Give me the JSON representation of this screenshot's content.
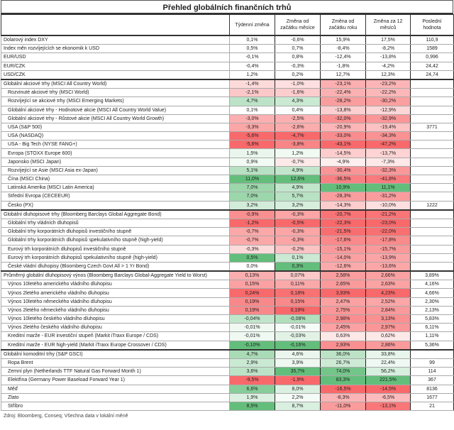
{
  "title": "Přehled globálních finančních trhů",
  "columns": [
    "",
    "Týdenní změna",
    "Změna od začátku měsíce",
    "Změna od začátku roku",
    "Změna za 12 měsíců",
    "Poslední hodnota"
  ],
  "color_scale": {
    "negative": "#f8696b",
    "positive": "#63be7b",
    "neutral": "#ffffff"
  },
  "groups": [
    {
      "heatmap": false,
      "inverted": false,
      "rows": [
        {
          "label": "Dolarový index DXY",
          "indent": false,
          "values": [
            "0,1%",
            "-0,6%",
            "15,9%",
            "17,5%",
            "110,9"
          ]
        },
        {
          "label": "Index měn rozvíjejících se ekonomik k USD",
          "indent": false,
          "values": [
            "0,5%",
            "0,7%",
            "-8,4%",
            "-8,2%",
            "1589"
          ]
        },
        {
          "label": "EUR/USD",
          "indent": false,
          "values": [
            "-0,1%",
            "0,8%",
            "-12,4%",
            "-13,8%",
            "0,996"
          ]
        },
        {
          "label": "EUR/CZK",
          "indent": false,
          "values": [
            "-0,4%",
            "-0,3%",
            "-1,8%",
            "-4,2%",
            "24,42"
          ]
        },
        {
          "label": "USD/CZK",
          "indent": false,
          "values": [
            "1,2%",
            "0,2%",
            "12,7%",
            "12,3%",
            "24,74"
          ]
        }
      ]
    },
    {
      "heatmap": true,
      "inverted": false,
      "rows": [
        {
          "label": "Globální akciové trhy (MSCI All Country World)",
          "indent": false,
          "values": [
            "-1,4%",
            "-1,0%",
            "-23,1%",
            "-23,2%",
            ""
          ]
        },
        {
          "label": "Rozvinuté akciové trhy (MSCI World)",
          "indent": true,
          "values": [
            "-2,1%",
            "-1,6%",
            "-22,4%",
            "-22,2%",
            ""
          ]
        },
        {
          "label": "Rozvíjející se akciové trhy (MSCI Emerging Markets)",
          "indent": true,
          "values": [
            "4,7%",
            "4,3%",
            "-28,2%",
            "-30,2%",
            ""
          ]
        },
        {
          "label": "Globální akciové trhy - Hodnotové akcie (MSCI All Country World Value)",
          "indent": true,
          "values": [
            "0,1%",
            "0,4%",
            "-13,8%",
            "-12,9%",
            ""
          ]
        },
        {
          "label": "Globální akciové trhy - Růstové akcie (MSCI All Country World Growth)",
          "indent": true,
          "values": [
            "-3,0%",
            "-2,5%",
            "-32,0%",
            "-32,9%",
            ""
          ]
        },
        {
          "label": "USA (S&P 500)",
          "indent": true,
          "values": [
            "-3,3%",
            "-2,6%",
            "-20,9%",
            "-19,4%",
            "3771"
          ]
        },
        {
          "label": "USA (NASDAQ)",
          "indent": true,
          "values": [
            "-5,6%",
            "-4,7%",
            "-33,0%",
            "-34,3%",
            ""
          ]
        },
        {
          "label": "USA - Big Tech (NYSE FANG+)",
          "indent": true,
          "values": [
            "-5,6%",
            "-3,8%",
            "-43,1%",
            "-47,2%",
            ""
          ]
        },
        {
          "label": "Evropa (STOXX Europe 600)",
          "indent": true,
          "values": [
            "1,5%",
            "1,2%",
            "-14,5%",
            "-13,7%",
            ""
          ]
        },
        {
          "label": "Japonsko (MSCI Japan)",
          "indent": true,
          "values": [
            "0,9%",
            "-0,7%",
            "-4,9%",
            "-7,3%",
            ""
          ]
        },
        {
          "label": "Rozvíjející se Asie (MSCI Asia ex-Japan)",
          "indent": true,
          "values": [
            "5,1%",
            "4,9%",
            "-30,4%",
            "-32,3%",
            ""
          ]
        },
        {
          "label": "Čína (MSCI China)",
          "indent": true,
          "values": [
            "11,0%",
            "12,6%",
            "-36,5%",
            "-41,8%",
            ""
          ]
        },
        {
          "label": "Latinská Amerika (MSCI Latin America)",
          "indent": true,
          "values": [
            "7,0%",
            "4,9%",
            "10,9%",
            "11,1%",
            ""
          ]
        },
        {
          "label": "Střední Evropa (CECEEUR)",
          "indent": true,
          "values": [
            "7,0%",
            "5,7%",
            "-28,3%",
            "-31,2%",
            ""
          ]
        },
        {
          "label": "Česko (PX)",
          "indent": true,
          "values": [
            "3,2%",
            "3,2%",
            "-14,3%",
            "-10,0%",
            "1222"
          ]
        }
      ]
    },
    {
      "heatmap": true,
      "inverted": false,
      "rows": [
        {
          "label": "Globální dluhopisové trhy (Bloomberg Barclays Global Aggregate Bond)",
          "indent": false,
          "values": [
            "-0,9%",
            "-0,3%",
            "-20,7%",
            "-21,2%",
            ""
          ]
        },
        {
          "label": "Globální trhy vládních dluhopisů",
          "indent": true,
          "values": [
            "-1,2%",
            "-0,5%",
            "-22,3%",
            "-23,0%",
            ""
          ]
        },
        {
          "label": "Globální trhy korporátních dluhopisů investičního stupně",
          "indent": true,
          "values": [
            "-0,7%",
            "-0,3%",
            "-21,5%",
            "-22,0%",
            ""
          ]
        },
        {
          "label": "Globální trhy korporátních dluhopisů spekulativního stupně (high-yield)",
          "indent": true,
          "values": [
            "-0,7%",
            "-0,3%",
            "-17,6%",
            "-17,8%",
            ""
          ]
        },
        {
          "label": "Eurový trh korporátních dluhopisů investičního stupně",
          "indent": true,
          "values": [
            "-0,3%",
            "-0,2%",
            "-15,1%",
            "-15,7%",
            ""
          ]
        },
        {
          "label": "Eurový trh korporátních dluhopisů spekulativního stupně (high-yield)",
          "indent": true,
          "values": [
            "0,5%",
            "0,1%",
            "-14,0%",
            "-13,9%",
            ""
          ]
        },
        {
          "label": "České vládní dluhopisy (Bloomberg Czech Govt All > 1 Yr Bond)",
          "indent": true,
          "values": [
            "0,0%",
            "0,3%",
            "-12,6%",
            "-13,6%",
            ""
          ]
        }
      ]
    },
    {
      "heatmap": true,
      "inverted": true,
      "rows": [
        {
          "label": "Průměrný globální dluhopisový výnos (Bloomberg Barclays Global-Aggregate Yield to Worst)",
          "indent": false,
          "values": [
            "0,13%",
            "0,07%",
            "2,58%",
            "2,66%",
            "3,89%"
          ]
        },
        {
          "label": "Výnos 10letého amerického vládního dluhopisu",
          "indent": true,
          "values": [
            "0,15%",
            "0,11%",
            "2,65%",
            "2,63%",
            "4,16%"
          ]
        },
        {
          "label": "Výnos 2letého amerického vládního dluhopisu",
          "indent": true,
          "values": [
            "0,24%",
            "0,18%",
            "3,93%",
            "4,23%",
            "4,66%"
          ]
        },
        {
          "label": "Výnos 10letého německého vládního dluhopisu",
          "indent": true,
          "values": [
            "0,19%",
            "0,15%",
            "2,47%",
            "2,52%",
            "2,30%"
          ]
        },
        {
          "label": "Výnos 2letého německého vládního dluhopisu",
          "indent": true,
          "values": [
            "0,19%",
            "0,19%",
            "2,75%",
            "2,84%",
            "2,13%"
          ]
        },
        {
          "label": "Výnos 10letého českého vládního dluhopisu",
          "indent": true,
          "values": [
            "-0,04%",
            "-0,08%",
            "2,98%",
            "3,13%",
            "5,83%"
          ]
        },
        {
          "label": "Výnos 2letého českého vládního dluhopisu",
          "indent": true,
          "values": [
            "-0,01%",
            "-0,01%",
            "2,45%",
            "2,97%",
            "6,11%"
          ]
        },
        {
          "label": "Kreditní marže - EUR investiční stupeň (Markit iTraxx Europe / CDS)",
          "indent": true,
          "values": [
            "-0,01%",
            "-0,03%",
            "0,63%",
            "0,62%",
            "1,11%"
          ]
        },
        {
          "label": "Kreditní marže - EUR high-yield (Markit iTraxx Europe Crossover / CDS)",
          "indent": true,
          "values": [
            "-0,10%",
            "-0,16%",
            "2,93%",
            "2,86%",
            "5,36%"
          ]
        }
      ]
    },
    {
      "heatmap": true,
      "inverted": false,
      "rows": [
        {
          "label": "Globální komoditní trhy (S&P GSCI)",
          "indent": false,
          "values": [
            "4,7%",
            "4,6%",
            "36,0%",
            "33,8%",
            ""
          ]
        },
        {
          "label": "Ropa Brent",
          "indent": true,
          "values": [
            "2,9%",
            "3,9%",
            "26,7%",
            "22,4%",
            "99"
          ]
        },
        {
          "label": "Zemní plyn (Netherlands TTF Natural Gas Forward Month 1)",
          "indent": true,
          "values": [
            "3,6%",
            "35,7%",
            "74,0%",
            "56,2%",
            "114"
          ]
        },
        {
          "label": "Elektřina (Germany Power Baseload Forward Year 1)",
          "indent": true,
          "values": [
            "-9,5%",
            "-1,9%",
            "83,3%",
            "221,5%",
            "367"
          ]
        },
        {
          "label": "Měď",
          "indent": true,
          "values": [
            "6,6%",
            "8,0%",
            "-16,5%",
            "-14,5%",
            "8136"
          ]
        },
        {
          "label": "Zlato",
          "indent": true,
          "values": [
            "1,9%",
            "2,2%",
            "-8,3%",
            "-6,5%",
            "1677"
          ]
        },
        {
          "label": "Stříbro",
          "indent": true,
          "values": [
            "8,5%",
            "8,7%",
            "-11,0%",
            "-13,1%",
            "21"
          ]
        }
      ]
    }
  ],
  "footer": "Zdroj: Bloomberg, Conseq; Všechna data v lokální měně"
}
